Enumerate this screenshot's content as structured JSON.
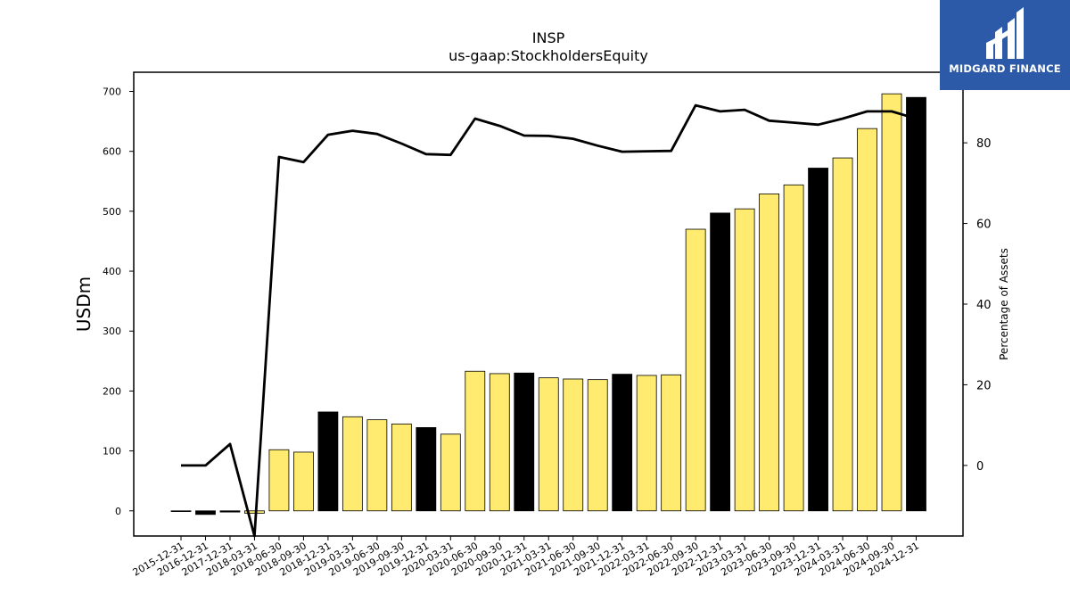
{
  "brand": {
    "name": "MIDGARD FINANCE",
    "bg_color": "#2d5aa8"
  },
  "chart_data": {
    "type": "bar",
    "title": "INSP",
    "subtitle": "us-gaap:StockholdersEquity",
    "ylabel": "USDm",
    "y2label": "Percentage of Assets",
    "ylim": [
      -42,
      732
    ],
    "y2lim": [
      -17.5,
      97.5
    ],
    "yticks": [
      0,
      100,
      200,
      300,
      400,
      500,
      600,
      700
    ],
    "y2ticks": [
      0,
      20,
      40,
      60,
      80
    ],
    "grid": false,
    "colors": {
      "annual": "#000000",
      "quarterly": "#ffeb70",
      "line": "#000000"
    },
    "categories": [
      "2015-12-31",
      "2016-12-31",
      "2017-12-31",
      "2018-03-31",
      "2018-06-30",
      "2018-09-30",
      "2018-12-31",
      "2019-03-31",
      "2019-06-30",
      "2019-09-30",
      "2019-12-31",
      "2020-03-31",
      "2020-06-30",
      "2020-09-30",
      "2020-12-31",
      "2021-03-31",
      "2021-06-30",
      "2021-09-30",
      "2021-12-31",
      "2022-03-31",
      "2022-06-30",
      "2022-09-30",
      "2022-12-31",
      "2023-03-31",
      "2023-06-30",
      "2023-09-30",
      "2023-12-31",
      "2024-03-31",
      "2024-06-30",
      "2024-09-30",
      "2024-12-31"
    ],
    "series": [
      {
        "kind": "bar",
        "values": [
          -1,
          -6,
          -2,
          -4,
          102,
          98,
          165,
          157,
          152,
          145,
          139,
          128,
          233,
          229,
          230,
          222,
          220,
          219,
          228,
          226,
          227,
          470,
          497,
          504,
          529,
          544,
          572,
          589,
          638,
          696,
          690
        ]
      },
      {
        "kind": "line",
        "axis": "right",
        "values": [
          0,
          0,
          5.3,
          -17.5,
          76.5,
          75.2,
          82,
          83,
          82.2,
          79.8,
          77.2,
          77,
          86,
          84.2,
          81.8,
          81.7,
          81,
          79.3,
          77.8,
          77.9,
          78,
          89.3,
          87.8,
          88.2,
          85.5,
          85,
          84.5,
          86,
          87.8,
          87.8,
          86
        ]
      }
    ]
  }
}
